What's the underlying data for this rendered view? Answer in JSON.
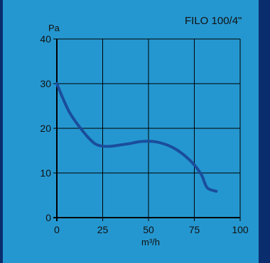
{
  "chart_data": {
    "type": "line",
    "title": "FILO 100/4\"",
    "xlabel": "m³/h",
    "ylabel": "Pa",
    "xlim": [
      0,
      100
    ],
    "ylim": [
      0,
      40
    ],
    "x_ticks": [
      0,
      25,
      50,
      75,
      100
    ],
    "y_ticks": [
      0,
      10,
      20,
      30,
      40
    ],
    "grid": true,
    "series": [
      {
        "x": [
          0,
          3,
          7,
          12,
          17,
          21,
          25,
          30,
          35,
          40,
          45,
          50,
          55,
          60,
          65,
          70,
          75,
          79,
          82,
          87
        ],
        "y": [
          30,
          27,
          23.5,
          20.5,
          18,
          16.5,
          16,
          16,
          16.3,
          16.6,
          17,
          17.1,
          16.9,
          16.3,
          15.3,
          13.8,
          11.8,
          9.5,
          6.7,
          5.9
        ]
      }
    ],
    "colors": {
      "background": "#2597d0",
      "frame": "#0a2d6e",
      "curve": "#1a4d9c",
      "grid": "#000000",
      "text": "#111111"
    }
  }
}
